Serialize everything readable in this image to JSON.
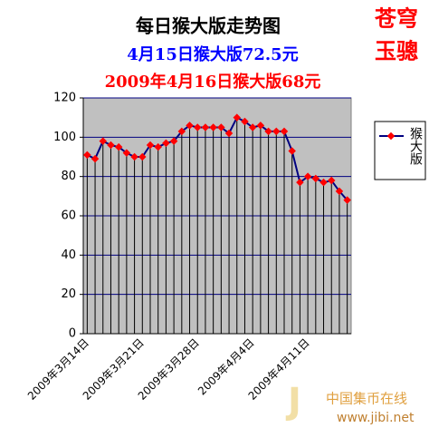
{
  "chart_data": {
    "type": "line",
    "title": "每日猴大版走势图",
    "subtitles": [
      "4月15日猴大版72.5元",
      "2009年4月16日猴大版68元"
    ],
    "categories": [
      "2009年3月14日",
      null,
      null,
      null,
      null,
      null,
      null,
      "2009年3月21日",
      null,
      null,
      null,
      null,
      null,
      null,
      "2009年3月28日",
      null,
      null,
      null,
      null,
      null,
      null,
      "2009年4月4日",
      null,
      null,
      null,
      null,
      null,
      null,
      "2009年4月11日",
      null,
      null,
      null,
      null,
      null
    ],
    "series": [
      {
        "name": "猴大版",
        "color": "#000080",
        "marker_color": "#ff0000",
        "values": [
          91,
          89,
          98,
          96,
          95,
          92,
          90,
          90,
          96,
          95,
          97,
          98,
          103,
          106,
          105,
          105,
          105,
          105,
          102,
          110,
          108,
          105,
          106,
          103,
          103,
          103,
          93,
          77,
          80,
          79,
          77,
          78,
          72.5,
          68
        ]
      }
    ],
    "ylim": [
      0,
      120
    ],
    "yticks": [
      0,
      20,
      40,
      60,
      80,
      100,
      120
    ],
    "grid": true,
    "legend": "right"
  },
  "stamp": [
    "苍穹",
    "玉骢"
  ],
  "watermark": [
    "中国集币在线",
    "www.jibi.net"
  ]
}
